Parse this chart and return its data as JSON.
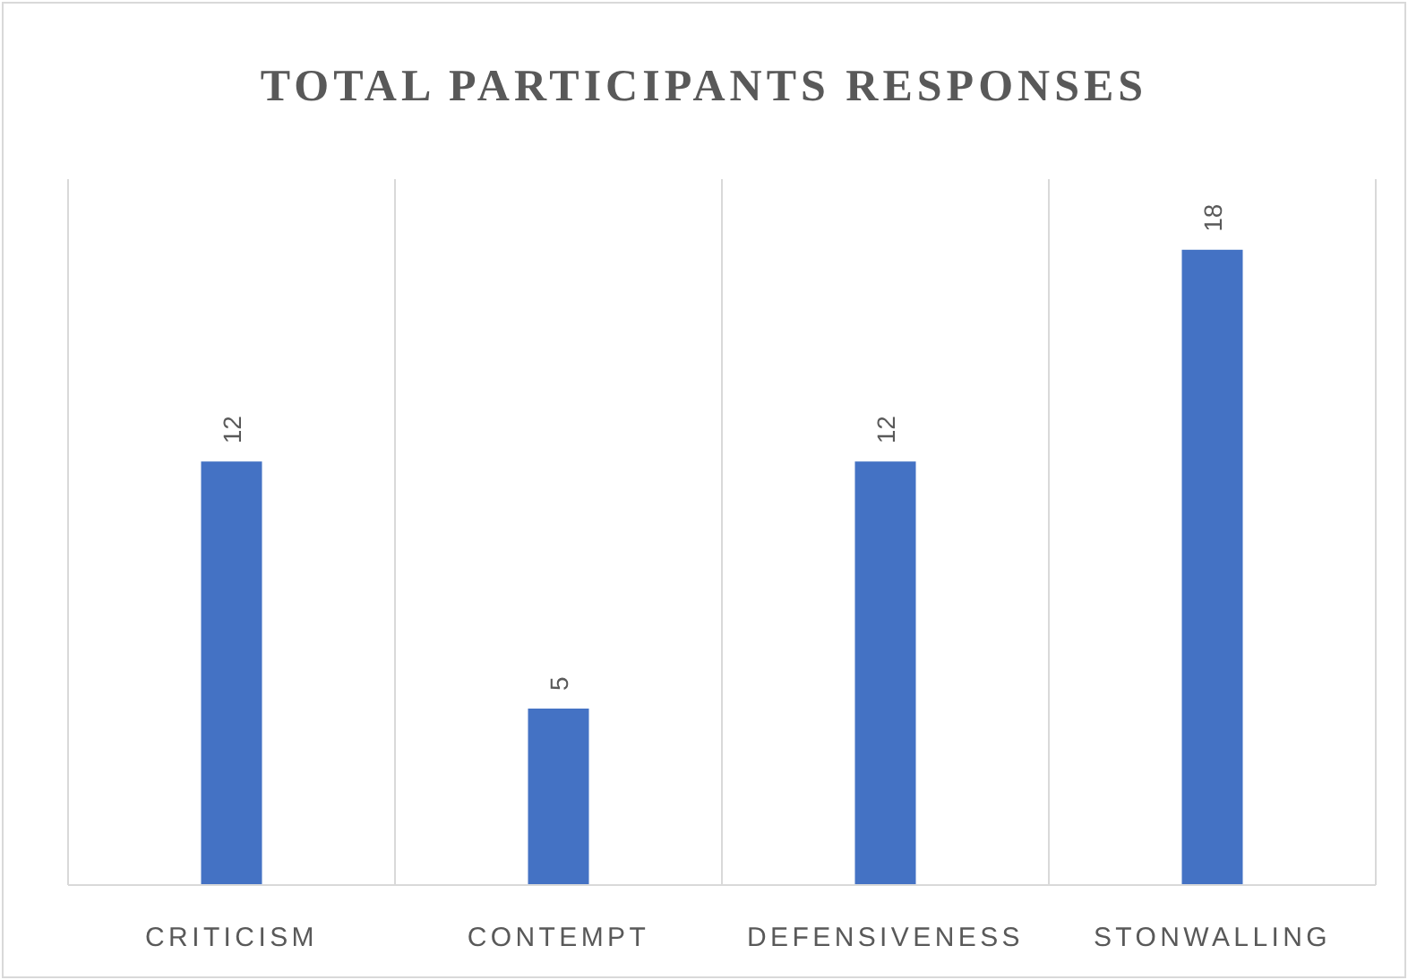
{
  "chart_data": {
    "type": "bar",
    "title": "TOTAL PARTICIPANTS RESPONSES",
    "categories": [
      "CRITICISM",
      "CONTEMPT",
      "DEFENSIVENESS",
      "STONWALLING"
    ],
    "values": [
      12,
      5,
      12,
      18
    ],
    "color": "#4472c4",
    "ylim": [
      0,
      20
    ],
    "data_labels": true,
    "grid": "x",
    "tick_labels": "x"
  }
}
